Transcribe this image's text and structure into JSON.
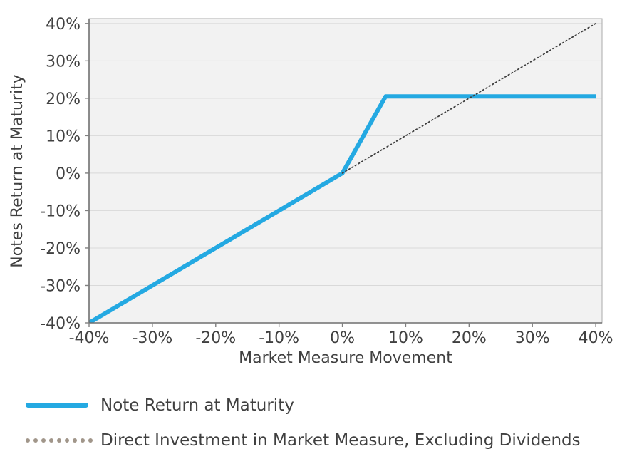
{
  "chart_data": {
    "type": "line",
    "title": "",
    "xlabel": "Market Measure Movement",
    "ylabel": "Notes Return at Maturity",
    "xlim": [
      -40,
      41
    ],
    "ylim": [
      -40,
      41.3
    ],
    "x_ticks": [
      -40,
      -30,
      -20,
      -10,
      0,
      10,
      20,
      30,
      40
    ],
    "x_tick_labels": [
      "-40%",
      "-30%",
      "-20%",
      "-10%",
      "0%",
      "10%",
      "20%",
      "30%",
      "40%"
    ],
    "y_ticks": [
      -40,
      -30,
      -20,
      -10,
      0,
      10,
      20,
      30,
      40
    ],
    "y_tick_labels": [
      "-40%",
      "-30%",
      "-20%",
      "-10%",
      "0%",
      "10%",
      "20%",
      "30%",
      "40%"
    ],
    "grid": "horizontal",
    "legend_position": "bottom-left",
    "plot_background": "#f2f2f2",
    "grid_color": "#d9d9d9",
    "border_color": "#ababab",
    "axis_line_color": "#6f6f6f",
    "tick_color": "#808080",
    "text_color": "#404040",
    "series": [
      {
        "name": "Note Return at Maturity",
        "style": "solid",
        "color": "#24A9E2",
        "width": 6,
        "points": [
          [
            -40,
            -40
          ],
          [
            0,
            0
          ],
          [
            6.83,
            20.5
          ],
          [
            40,
            20.5
          ]
        ]
      },
      {
        "name": "Direct Investment in Market Measure, Excluding Dividends",
        "style": "dotted",
        "color": "#3f3f3f",
        "width": 1.8,
        "points": [
          [
            0,
            0
          ],
          [
            40,
            40
          ]
        ]
      }
    ]
  },
  "legend": {
    "items": [
      {
        "label": "Note Return at Maturity",
        "swatch": "solid-line",
        "color": "#24A9E2"
      },
      {
        "label": "Direct Investment in Market Measure, Excluding Dividends",
        "swatch": "dotted-line",
        "color": "#A1968A"
      }
    ]
  }
}
